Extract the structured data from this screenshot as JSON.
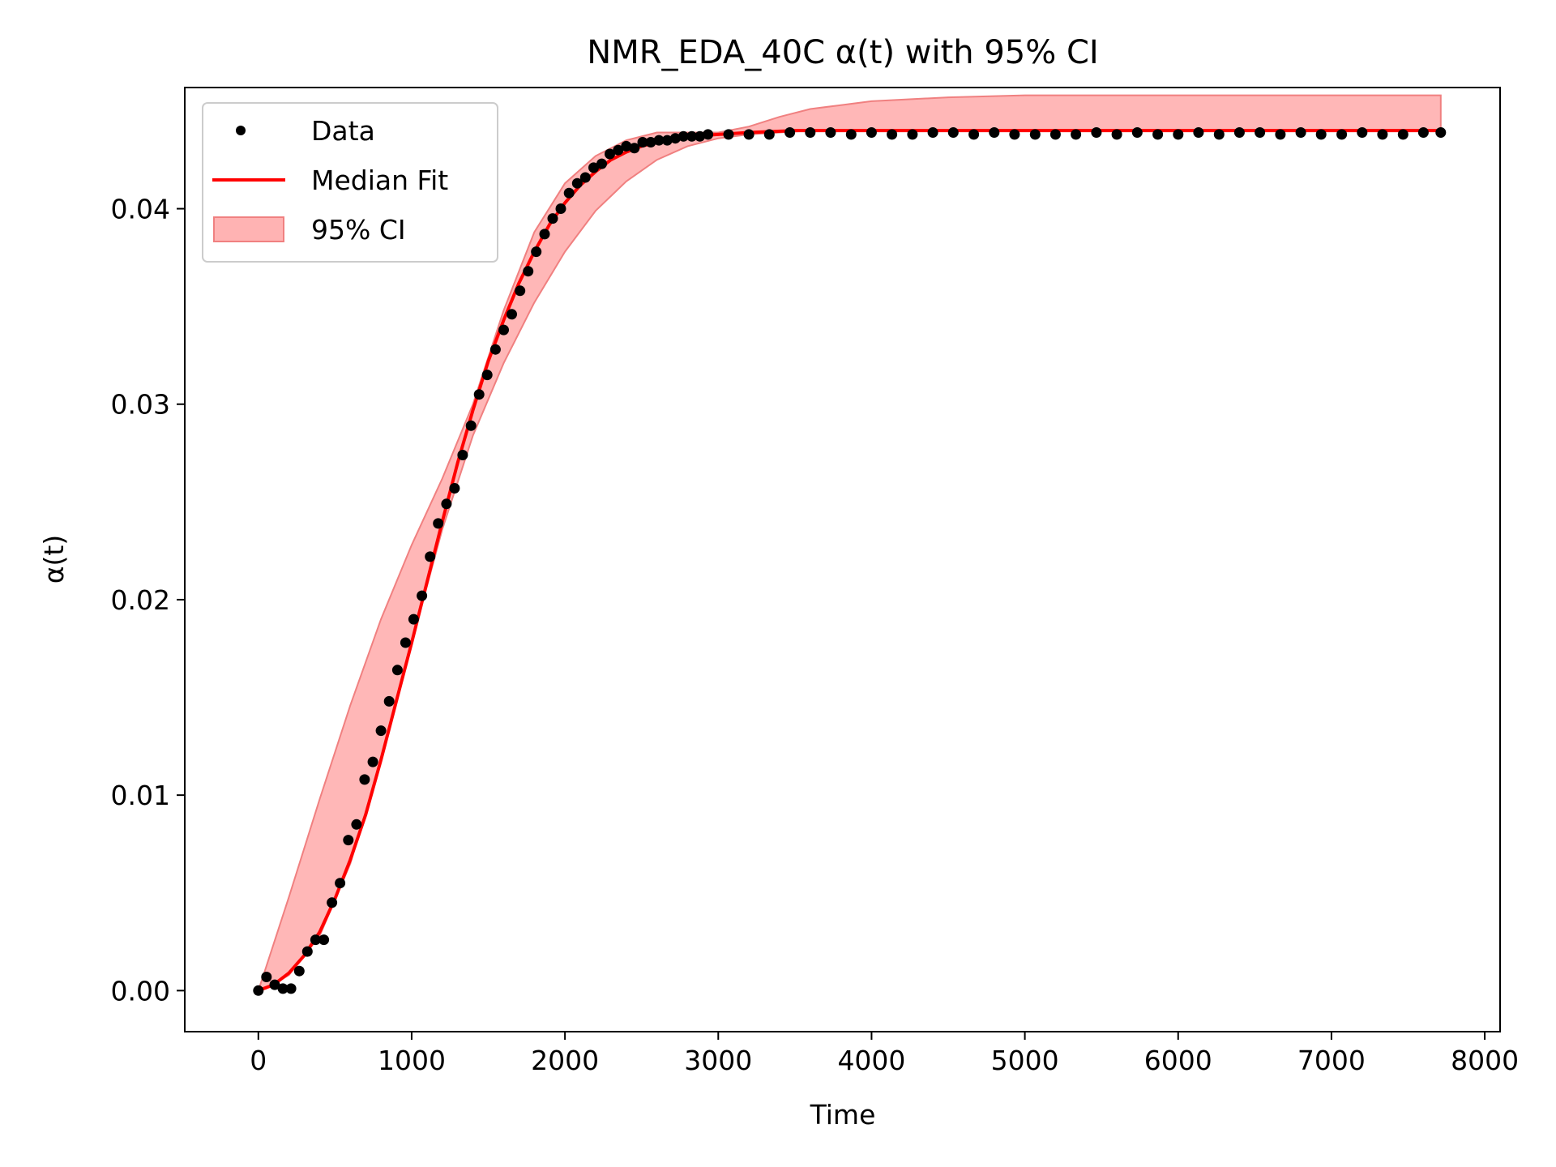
{
  "chart_data": {
    "type": "line",
    "title": "NMR_EDA_40C α(t) with 95% CI",
    "xlabel": "Time",
    "ylabel": "α(t)",
    "xlim": [
      -480,
      8100
    ],
    "ylim": [
      -0.0021,
      0.0462
    ],
    "xticks": [
      0,
      1000,
      2000,
      3000,
      4000,
      5000,
      6000,
      7000,
      8000
    ],
    "xtick_labels": [
      "0",
      "1000",
      "2000",
      "3000",
      "4000",
      "5000",
      "6000",
      "7000",
      "8000"
    ],
    "yticks": [
      0.0,
      0.01,
      0.02,
      0.03,
      0.04
    ],
    "ytick_labels": [
      "0.00",
      "0.01",
      "0.02",
      "0.03",
      "0.04"
    ],
    "grid": false,
    "legend_position": "top-left",
    "legend": [
      "Data",
      "Median Fit",
      "95% CI"
    ],
    "colors": {
      "data": "#000000",
      "fit": "#ff0000",
      "ci_fill": "#ffb3b3",
      "ci_edge": "#f08080"
    },
    "series": [
      {
        "name": "Data",
        "kind": "scatter",
        "x": [
          0,
          53,
          107,
          160,
          213,
          267,
          320,
          373,
          427,
          480,
          533,
          587,
          640,
          693,
          747,
          800,
          853,
          907,
          960,
          1013,
          1067,
          1120,
          1173,
          1227,
          1280,
          1333,
          1387,
          1440,
          1493,
          1547,
          1600,
          1653,
          1707,
          1760,
          1813,
          1867,
          1920,
          1973,
          2027,
          2080,
          2133,
          2187,
          2240,
          2293,
          2347,
          2400,
          2453,
          2507,
          2560,
          2613,
          2667,
          2720,
          2773,
          2827,
          2880,
          2933,
          3067,
          3200,
          3333,
          3467,
          3600,
          3733,
          3867,
          4000,
          4133,
          4267,
          4400,
          4533,
          4667,
          4800,
          4933,
          5067,
          5200,
          5333,
          5467,
          5600,
          5733,
          5867,
          6000,
          6133,
          6267,
          6400,
          6533,
          6667,
          6800,
          6933,
          7067,
          7200,
          7333,
          7467,
          7600,
          7713
        ],
        "y": [
          0.0,
          0.0007,
          0.0003,
          0.0001,
          0.0001,
          0.001,
          0.002,
          0.0026,
          0.0026,
          0.0045,
          0.0055,
          0.0077,
          0.0085,
          0.0108,
          0.0117,
          0.0133,
          0.0148,
          0.0164,
          0.0178,
          0.019,
          0.0202,
          0.0222,
          0.0239,
          0.0249,
          0.0257,
          0.0274,
          0.0289,
          0.0305,
          0.0315,
          0.0328,
          0.0338,
          0.0346,
          0.0358,
          0.0368,
          0.0378,
          0.0387,
          0.0395,
          0.04,
          0.0408,
          0.0413,
          0.0416,
          0.0421,
          0.0423,
          0.0428,
          0.043,
          0.0432,
          0.0431,
          0.0434,
          0.0434,
          0.0435,
          0.0435,
          0.0436,
          0.0437,
          0.0437,
          0.0437,
          0.0438,
          0.0438,
          0.0438,
          0.0438,
          0.0439,
          0.0439,
          0.0439,
          0.0438,
          0.0439,
          0.0438,
          0.0438,
          0.0439,
          0.0439,
          0.0438,
          0.0439,
          0.0438,
          0.0438,
          0.0438,
          0.0438,
          0.0439,
          0.0438,
          0.0439,
          0.0438,
          0.0438,
          0.0439,
          0.0438,
          0.0439,
          0.0439,
          0.0438,
          0.0439,
          0.0438,
          0.0438,
          0.0439,
          0.0438,
          0.0438,
          0.0439,
          0.0439
        ]
      },
      {
        "name": "Median Fit",
        "kind": "line",
        "x": [
          0,
          100,
          200,
          300,
          400,
          500,
          600,
          700,
          800,
          900,
          1000,
          1100,
          1200,
          1300,
          1400,
          1500,
          1600,
          1700,
          1800,
          1900,
          2000,
          2100,
          2200,
          2300,
          2400,
          2500,
          2600,
          2700,
          2800,
          3000,
          3200,
          3500,
          4000,
          5000,
          6000,
          7000,
          7713
        ],
        "y": [
          0.0,
          0.0003,
          0.0009,
          0.0018,
          0.003,
          0.0047,
          0.0067,
          0.009,
          0.0118,
          0.0148,
          0.0178,
          0.0209,
          0.024,
          0.027,
          0.0297,
          0.0322,
          0.0343,
          0.0362,
          0.0378,
          0.0392,
          0.0403,
          0.0412,
          0.0419,
          0.0425,
          0.0429,
          0.0432,
          0.0434,
          0.0436,
          0.0437,
          0.0438,
          0.0439,
          0.044,
          0.044,
          0.044,
          0.044,
          0.044,
          0.044
        ]
      },
      {
        "name": "95% CI",
        "kind": "band",
        "x": [
          0,
          50,
          200,
          400,
          600,
          800,
          1000,
          1200,
          1400,
          1600,
          1800,
          2000,
          2200,
          2400,
          2600,
          2800,
          3000,
          3200,
          3400,
          3600,
          3800,
          4000,
          4500,
          5000,
          6000,
          7000,
          7713
        ],
        "lower": [
          0.0,
          0.0001,
          0.0008,
          0.0028,
          0.0065,
          0.0118,
          0.0178,
          0.0236,
          0.0284,
          0.0321,
          0.0352,
          0.0378,
          0.0399,
          0.0414,
          0.0425,
          0.0432,
          0.0436,
          0.0438,
          0.0439,
          0.044,
          0.044,
          0.044,
          0.044,
          0.044,
          0.044,
          0.044,
          0.044
        ],
        "upper": [
          0.0,
          0.0012,
          0.0048,
          0.0098,
          0.0146,
          0.019,
          0.0228,
          0.0262,
          0.03,
          0.0348,
          0.0388,
          0.0413,
          0.0427,
          0.0435,
          0.0439,
          0.0439,
          0.0439,
          0.0442,
          0.0447,
          0.0451,
          0.0453,
          0.0455,
          0.0457,
          0.0458,
          0.0458,
          0.0458,
          0.0458
        ]
      }
    ]
  }
}
